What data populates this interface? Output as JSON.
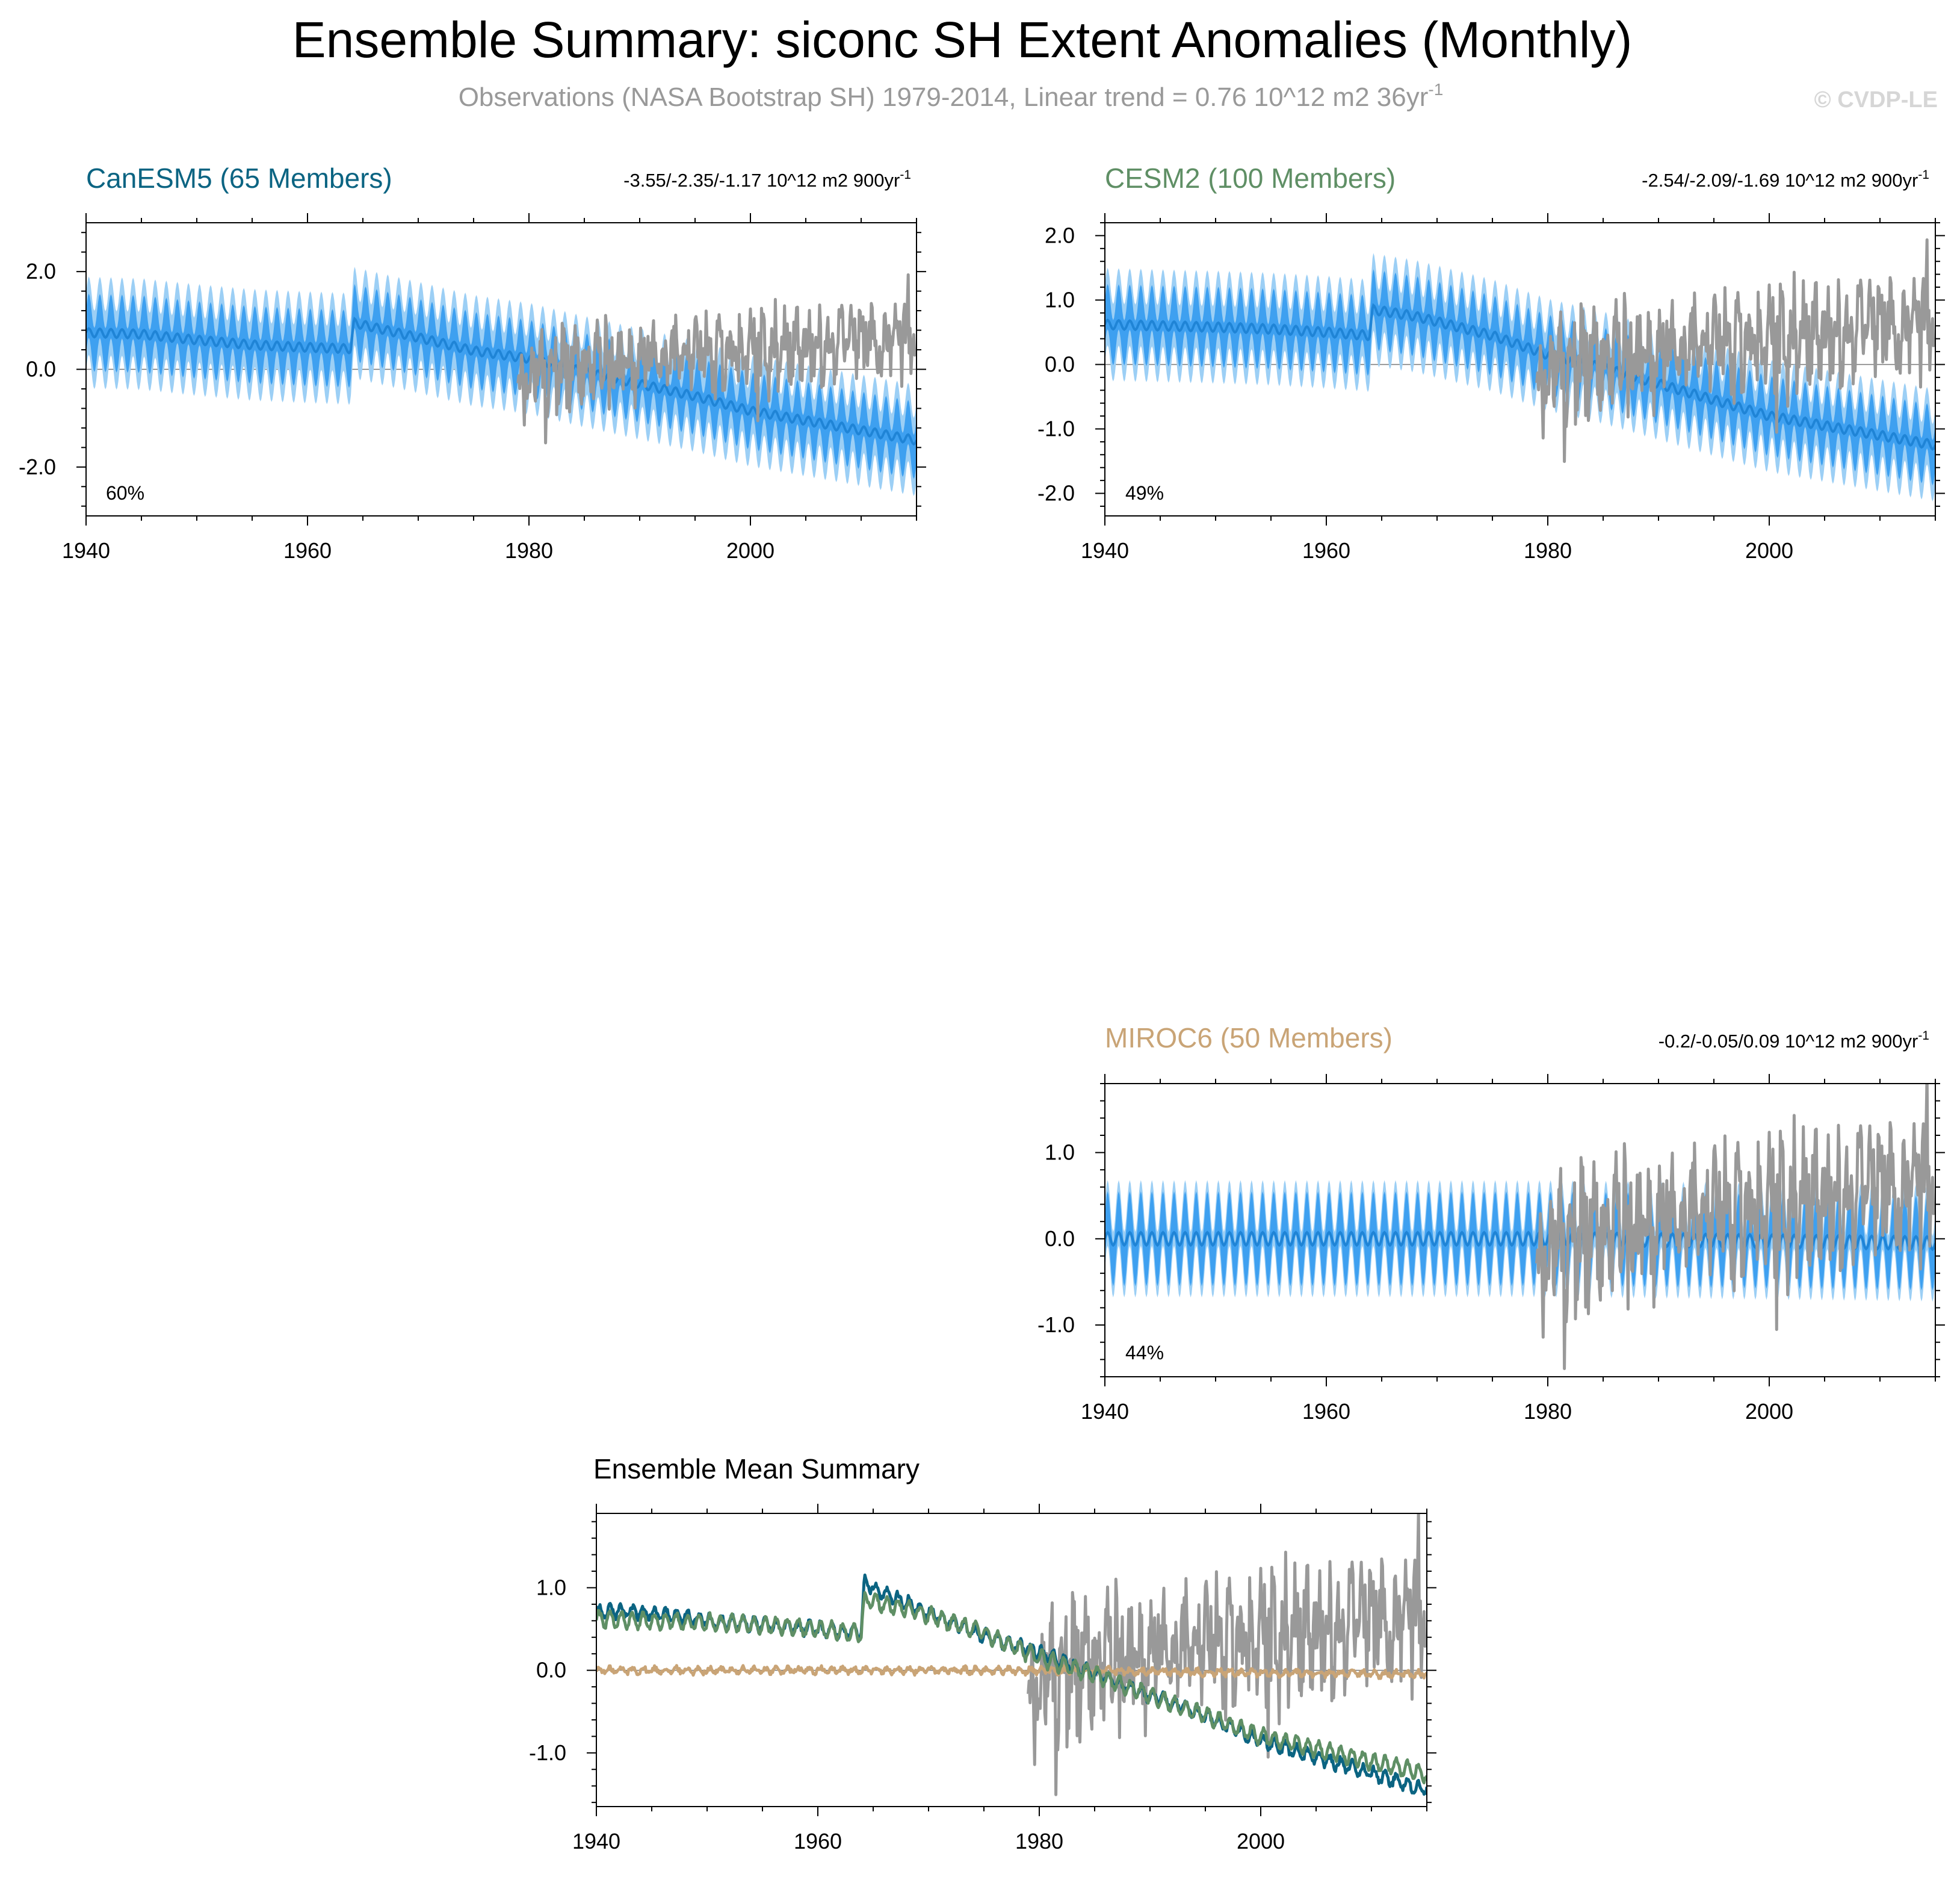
{
  "figure": {
    "title": "Ensemble Summary: siconc SH Extent Anomalies (Monthly)",
    "subtitle": "Observations (NASA Bootstrap SH) 1979-2014, Linear trend = 0.76 10^12 m2 36yr",
    "subtitle_sup": "-1",
    "watermark": "© CVDP-LE",
    "colors": {
      "title": "#000000",
      "subtitle": "#999999",
      "watermark": "#d6d6d6",
      "obs": "#999999",
      "spread_outer": "#9ccff5",
      "spread_inner": "#3ea0f0",
      "ens_mean": "#1f84d6",
      "canesm5": "#0b6482",
      "cesm2": "#5f8f65",
      "miroc6": "#c9a476"
    }
  },
  "chart_data": [
    {
      "id": "canesm5",
      "type": "line",
      "title": "CanESM5 (65 Members)",
      "title_color": "#0b6482",
      "trend_label": "-3.55/-2.35/-1.17 10^12 m2 900yr",
      "trend_sup": "-1",
      "percent_label": "60%",
      "xlim": [
        1940,
        2015
      ],
      "ylim": [
        -3.0,
        3.0
      ],
      "x_ticks": [
        1940,
        1960,
        1980,
        2000
      ],
      "y_ticks": [
        -2.0,
        0.0,
        2.0
      ],
      "y_tick_labels": [
        "-2.0",
        "0.0",
        "2.0"
      ],
      "series": [
        {
          "name": "Ensemble mean",
          "kind": "ensemble",
          "mean_points": [
            [
              1940,
              0.75
            ],
            [
              1945,
              0.72
            ],
            [
              1950,
              0.6
            ],
            [
              1955,
              0.5
            ],
            [
              1960,
              0.45
            ],
            [
              1963.9,
              0.42
            ],
            [
              1964.2,
              0.95
            ],
            [
              1970,
              0.65
            ],
            [
              1975,
              0.38
            ],
            [
              1980,
              0.22
            ],
            [
              1985,
              -0.05
            ],
            [
              1990,
              -0.3
            ],
            [
              1995,
              -0.55
            ],
            [
              2000,
              -0.85
            ],
            [
              2005,
              -1.05
            ],
            [
              2010,
              -1.25
            ],
            [
              2014.9,
              -1.45
            ]
          ],
          "seasonal_amplitude": 0.35,
          "spread_inner": 0.45,
          "spread_outer": 0.8
        },
        {
          "name": "Observations (NASA Bootstrap SH)",
          "kind": "obs",
          "x_start": 1979,
          "x_end": 2014.9,
          "trend": [
            0.0,
            0.76
          ]
        }
      ]
    },
    {
      "id": "cesm2",
      "type": "line",
      "title": "CESM2 (100 Members)",
      "title_color": "#5f8f65",
      "trend_label": "-2.54/-2.09/-1.69 10^12 m2 900yr",
      "trend_sup": "-1",
      "percent_label": "49%",
      "xlim": [
        1940,
        2015
      ],
      "ylim": [
        -2.35,
        2.2
      ],
      "x_ticks": [
        1940,
        1960,
        1980,
        2000
      ],
      "y_ticks": [
        -2.0,
        -1.0,
        0.0,
        1.0,
        2.0
      ],
      "y_tick_labels": [
        "-2.0",
        "-1.0",
        "0.0",
        "1.0",
        "2.0"
      ],
      "series": [
        {
          "name": "Ensemble mean",
          "kind": "ensemble",
          "mean_points": [
            [
              1940,
              0.62
            ],
            [
              1945,
              0.6
            ],
            [
              1950,
              0.58
            ],
            [
              1955,
              0.55
            ],
            [
              1960,
              0.5
            ],
            [
              1963.9,
              0.45
            ],
            [
              1964.2,
              0.85
            ],
            [
              1968,
              0.75
            ],
            [
              1975,
              0.45
            ],
            [
              1980,
              0.15
            ],
            [
              1985,
              -0.05
            ],
            [
              1990,
              -0.3
            ],
            [
              1995,
              -0.55
            ],
            [
              2000,
              -0.8
            ],
            [
              2005,
              -0.95
            ],
            [
              2010,
              -1.1
            ],
            [
              2014.9,
              -1.25
            ]
          ],
          "seasonal_amplitude": 0.28,
          "spread_inner": 0.35,
          "spread_outer": 0.6
        },
        {
          "name": "Observations (NASA Bootstrap SH)",
          "kind": "obs",
          "x_start": 1979,
          "x_end": 2014.9,
          "trend": [
            0.0,
            0.76
          ]
        }
      ]
    },
    {
      "id": "miroc6",
      "type": "line",
      "title": "MIROC6 (50 Members)",
      "title_color": "#c9a476",
      "trend_label": "-0.2/-0.05/0.09 10^12 m2 900yr",
      "trend_sup": "-1",
      "percent_label": "44%",
      "xlim": [
        1940,
        2015
      ],
      "ylim": [
        -1.6,
        1.8
      ],
      "x_ticks": [
        1940,
        1960,
        1980,
        2000
      ],
      "y_ticks": [
        -1.0,
        0.0,
        1.0
      ],
      "y_tick_labels": [
        "-1.0",
        "0.0",
        "1.0"
      ],
      "series": [
        {
          "name": "Ensemble mean",
          "kind": "ensemble",
          "mean_points": [
            [
              1940,
              0.0
            ],
            [
              1980,
              0.0
            ],
            [
              2014.9,
              -0.05
            ]
          ],
          "seasonal_amplitude": 0.3,
          "spread_inner": 0.25,
          "spread_outer": 0.38
        },
        {
          "name": "Observations (NASA Bootstrap SH)",
          "kind": "obs",
          "x_start": 1979,
          "x_end": 2014.9,
          "trend": [
            0.0,
            0.76
          ]
        }
      ]
    },
    {
      "id": "ensemble-mean",
      "type": "line",
      "title": "Ensemble Mean Summary",
      "title_color": "#000000",
      "xlim": [
        1940,
        2015
      ],
      "ylim": [
        -1.65,
        1.9
      ],
      "x_ticks": [
        1940,
        1960,
        1980,
        2000
      ],
      "y_ticks": [
        -1.0,
        0.0,
        1.0
      ],
      "y_tick_labels": [
        "-1.0",
        "0.0",
        "1.0"
      ],
      "series": [
        {
          "name": "Observations (NASA Bootstrap SH)",
          "kind": "obs",
          "x_start": 1979,
          "x_end": 2014.9,
          "trend": [
            0.0,
            0.76
          ]
        },
        {
          "name": "MIROC6",
          "kind": "mean",
          "color": "#c9a476",
          "mean_points": [
            [
              1940,
              0.0
            ],
            [
              1980,
              0.0
            ],
            [
              2014.9,
              -0.05
            ]
          ],
          "seasonal_amplitude": 0.03,
          "noise": 0.03
        },
        {
          "name": "CanESM5",
          "kind": "mean",
          "color": "#0b6482",
          "mean_points": [
            [
              1940,
              0.72
            ],
            [
              1945,
              0.7
            ],
            [
              1950,
              0.6
            ],
            [
              1955,
              0.55
            ],
            [
              1960,
              0.5
            ],
            [
              1963.9,
              0.45
            ],
            [
              1964.2,
              1.05
            ],
            [
              1970,
              0.7
            ],
            [
              1975,
              0.42
            ],
            [
              1980,
              0.22
            ],
            [
              1985,
              -0.05
            ],
            [
              1990,
              -0.3
            ],
            [
              1995,
              -0.55
            ],
            [
              2000,
              -0.85
            ],
            [
              2005,
              -1.05
            ],
            [
              2010,
              -1.25
            ],
            [
              2014.9,
              -1.45
            ]
          ],
          "seasonal_amplitude": 0.07,
          "noise": 0.04
        },
        {
          "name": "CESM2",
          "kind": "mean",
          "color": "#5f8f65",
          "mean_points": [
            [
              1940,
              0.62
            ],
            [
              1945,
              0.6
            ],
            [
              1950,
              0.58
            ],
            [
              1955,
              0.55
            ],
            [
              1960,
              0.5
            ],
            [
              1963.9,
              0.45
            ],
            [
              1964.2,
              0.85
            ],
            [
              1968,
              0.75
            ],
            [
              1975,
              0.45
            ],
            [
              1980,
              0.15
            ],
            [
              1985,
              -0.05
            ],
            [
              1990,
              -0.3
            ],
            [
              1995,
              -0.55
            ],
            [
              2000,
              -0.8
            ],
            [
              2005,
              -0.95
            ],
            [
              2010,
              -1.1
            ],
            [
              2014.9,
              -1.25
            ]
          ],
          "seasonal_amplitude": 0.09,
          "noise": 0.03
        }
      ]
    }
  ]
}
